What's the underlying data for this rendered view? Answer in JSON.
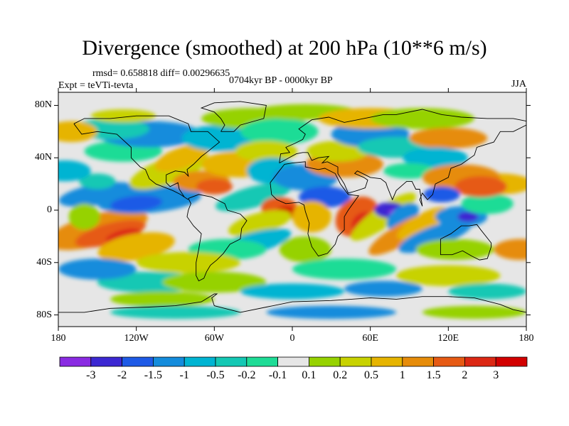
{
  "title": "Divergence (smoothed) at 200 hPa (10**6 m/s)",
  "stats": "rmsd= 0.658818 diff= 0.00296635",
  "experiment": "Expt = teVTi-tevta",
  "period": "0704kyr BP - 0000kyr BP",
  "season": "JJA",
  "lat_ticks": [
    "80N",
    "40N",
    "0",
    "40S",
    "80S"
  ],
  "lon_ticks": [
    "180",
    "120W",
    "60W",
    "0",
    "60E",
    "120E",
    "180"
  ],
  "colorbar": {
    "labels": [
      "-3",
      "-2",
      "-1.5",
      "-1",
      "-0.5",
      "-0.2",
      "-0.1",
      "0.1",
      "0.2",
      "0.5",
      "1",
      "1.5",
      "2",
      "3"
    ],
    "colors": [
      "#8a2be2",
      "#3c28d2",
      "#1e5ae6",
      "#148cdc",
      "#00b4d2",
      "#14c8b4",
      "#1edc96",
      "#e6e6e6",
      "#96d200",
      "#c8d200",
      "#e6b400",
      "#e68c0a",
      "#e65a14",
      "#dc2814",
      "#d20000"
    ]
  },
  "color_neutral": "#e6e6e6"
}
